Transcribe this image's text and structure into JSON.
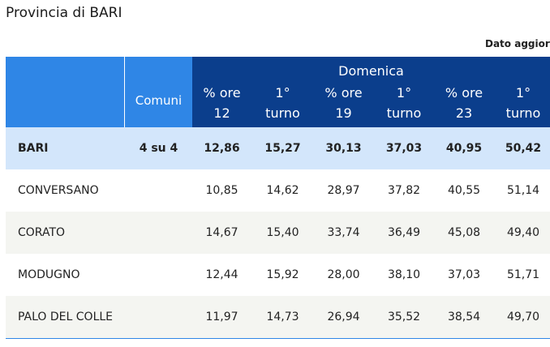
{
  "header": {
    "title": "Provincia di BARI",
    "note": "Dato aggiorr"
  },
  "table": {
    "comuni_header": "Comuni",
    "day": "Domenica",
    "subheaders": [
      "% ore\n12",
      "1°\nturno",
      "% ore\n19",
      "1°\nturno",
      "% ore\n23",
      "1°\nturno"
    ],
    "total": {
      "name": "BARI",
      "comuni": "4 su 4",
      "values": [
        "12,86",
        "15,27",
        "30,13",
        "37,03",
        "40,95",
        "50,42"
      ]
    },
    "rows": [
      {
        "name": "CONVERSANO",
        "values": [
          "10,85",
          "14,62",
          "28,97",
          "37,82",
          "40,55",
          "51,14"
        ]
      },
      {
        "name": "CORATO",
        "values": [
          "14,67",
          "15,40",
          "33,74",
          "36,49",
          "45,08",
          "49,40"
        ]
      },
      {
        "name": "MODUGNO",
        "values": [
          "12,44",
          "15,92",
          "28,00",
          "38,10",
          "37,03",
          "51,71"
        ]
      },
      {
        "name": "PALO DEL COLLE",
        "values": [
          "11,97",
          "14,73",
          "26,94",
          "35,52",
          "38,54",
          "49,70"
        ]
      }
    ]
  }
}
